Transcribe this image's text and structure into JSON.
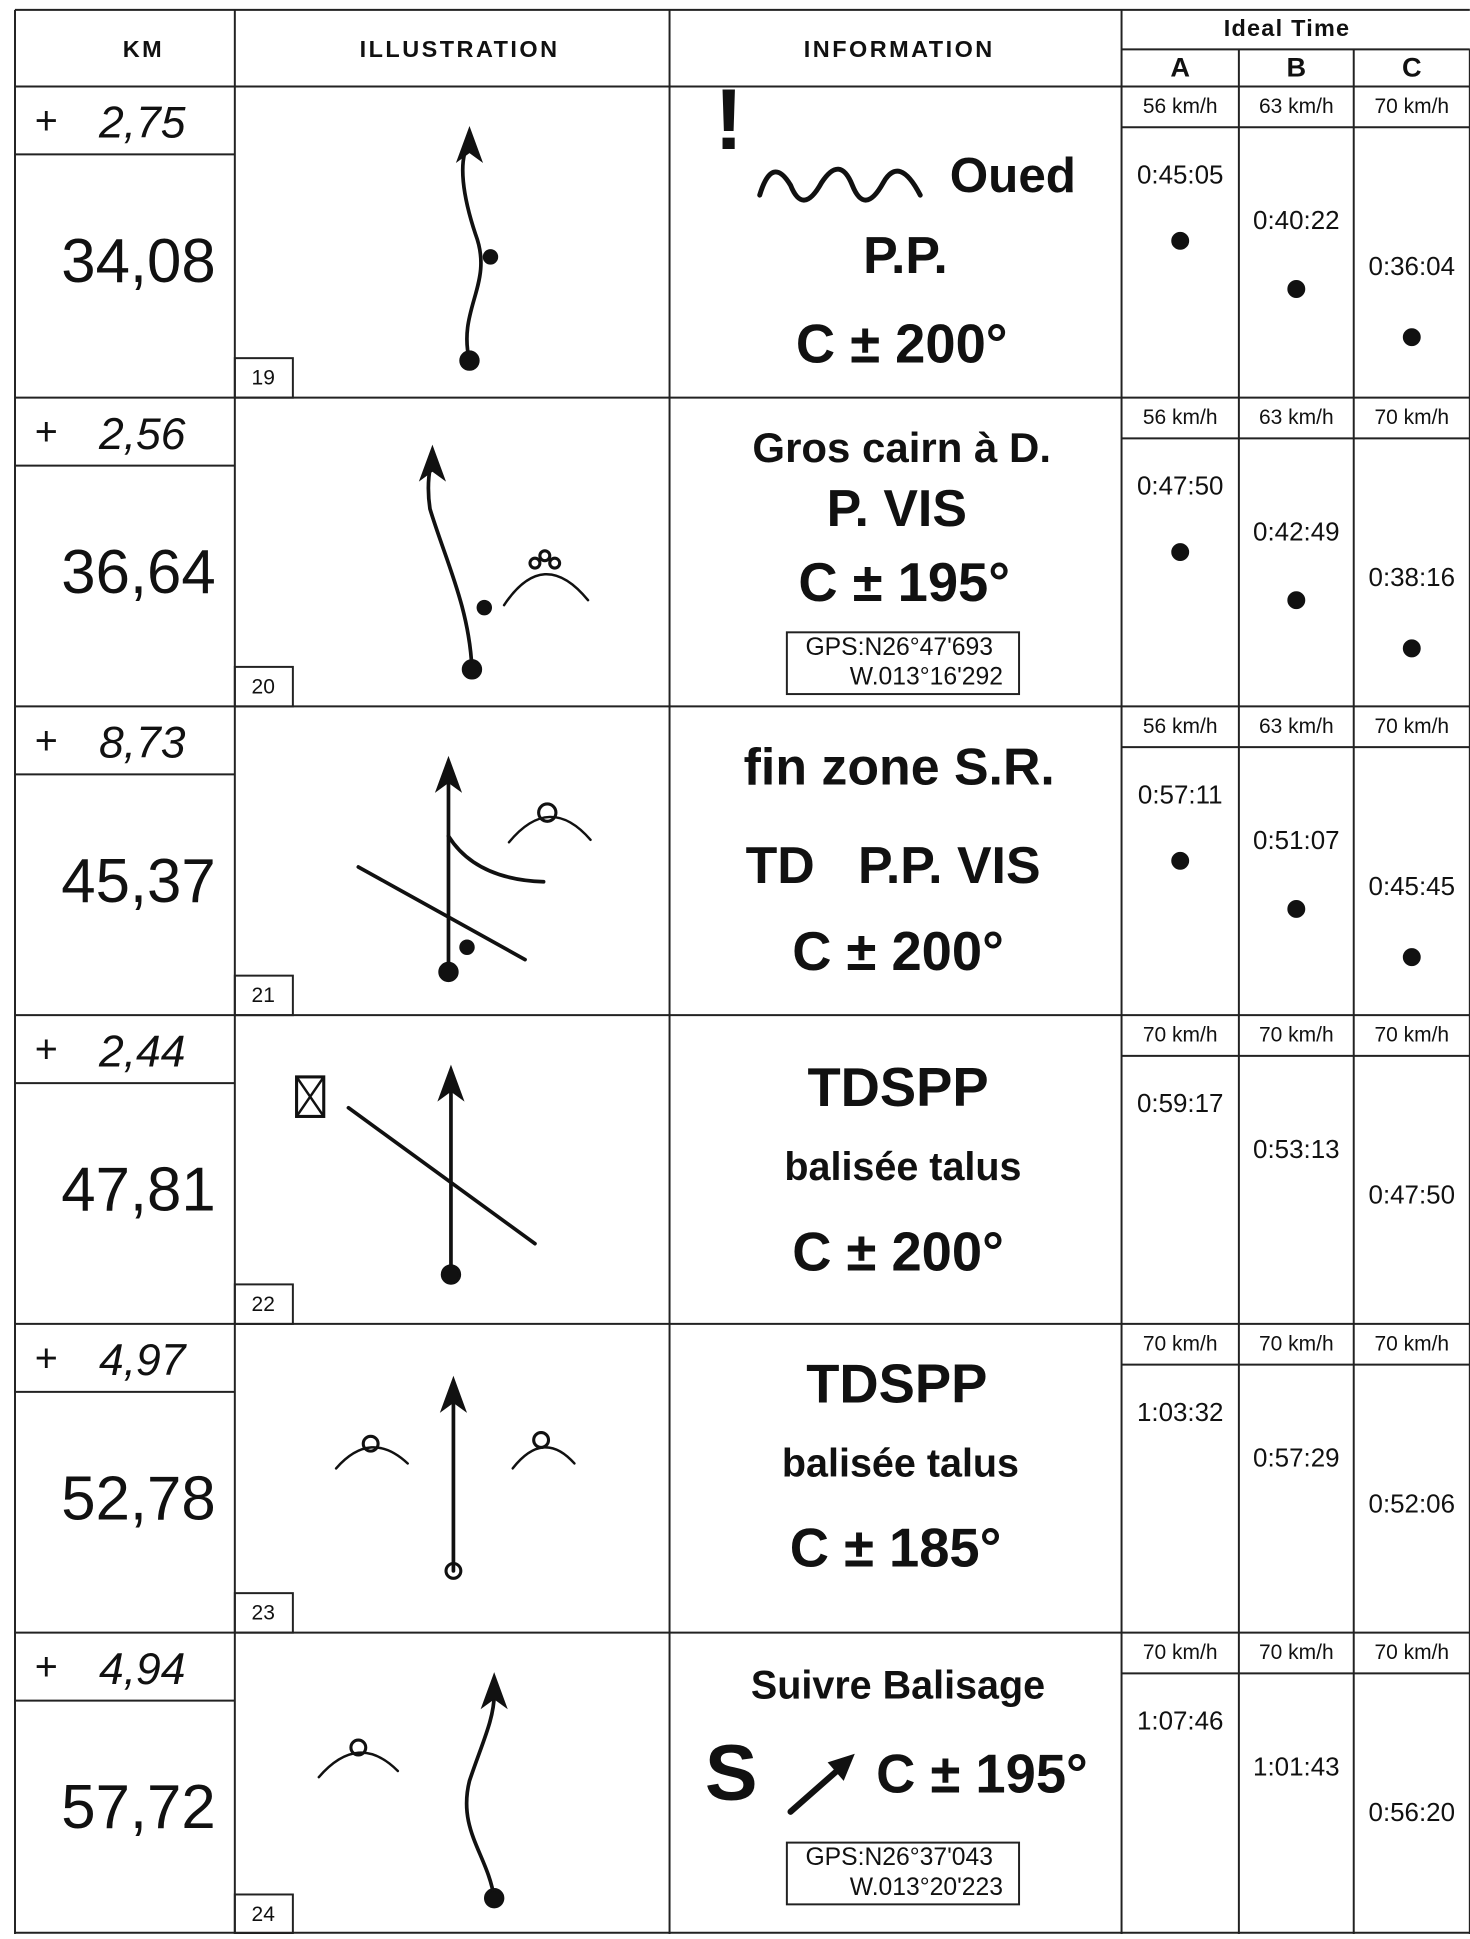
{
  "header": {
    "km": "KM",
    "illustration": "ILLUSTRATION",
    "information": "INFORMATION",
    "ideal_time": "Ideal Time",
    "columns": [
      "A",
      "B",
      "C"
    ]
  },
  "rows": [
    {
      "partial": "2,75",
      "plus": "+",
      "total": "34,08",
      "number": "19",
      "info": [
        "!",
        "Oued",
        "P.P.",
        "C ± 200°"
      ],
      "gps": [],
      "speeds": [
        "56 km/h",
        "63 km/h",
        "70 km/h"
      ],
      "times": [
        "0:45:05",
        "0:40:22",
        "0:36:04"
      ]
    },
    {
      "partial": "2,56",
      "plus": "+",
      "total": "36,64",
      "number": "20",
      "info": [
        "Gros cairn à D.",
        "P. VIS",
        "C ± 195°"
      ],
      "gps": [
        "GPS:N26°47'693",
        "W.013°16'292"
      ],
      "speeds": [
        "56 km/h",
        "63 km/h",
        "70 km/h"
      ],
      "times": [
        "0:47:50",
        "0:42:49",
        "0:38:16"
      ]
    },
    {
      "partial": "8,73",
      "plus": "+",
      "total": "45,37",
      "number": "21",
      "info": [
        "fin zone S.R.",
        "TD   P.P. VIS",
        "C ± 200°"
      ],
      "gps": [],
      "speeds": [
        "56 km/h",
        "63 km/h",
        "70 km/h"
      ],
      "times": [
        "0:57:11",
        "0:51:07",
        "0:45:45"
      ]
    },
    {
      "partial": "2,44",
      "plus": "+",
      "total": "47,81",
      "number": "22",
      "info": [
        "TDSPP",
        "balisée talus",
        "C ± 200°"
      ],
      "gps": [],
      "speeds": [
        "70 km/h",
        "70 km/h",
        "70 km/h"
      ],
      "times": [
        "0:59:17",
        "0:53:13",
        "0:47:50"
      ]
    },
    {
      "partial": "4,97",
      "plus": "+",
      "total": "52,78",
      "number": "23",
      "info": [
        "TDSPP",
        "balisée talus",
        "C ± 185°"
      ],
      "gps": [],
      "speeds": [
        "70 km/h",
        "70 km/h",
        "70 km/h"
      ],
      "times": [
        "1:03:32",
        "0:57:29",
        "0:52:06"
      ]
    },
    {
      "partial": "4,94",
      "plus": "+",
      "total": "57,72",
      "number": "24",
      "info": [
        "Suivre Balisage",
        "S",
        "C ± 195°"
      ],
      "gps": [
        "GPS:N26°37'043",
        "W.013°20'223"
      ],
      "speeds": [
        "70 km/h",
        "70 km/h",
        "70 km/h"
      ],
      "times": [
        "1:07:46",
        "1:01:43",
        "0:56:20"
      ]
    }
  ]
}
